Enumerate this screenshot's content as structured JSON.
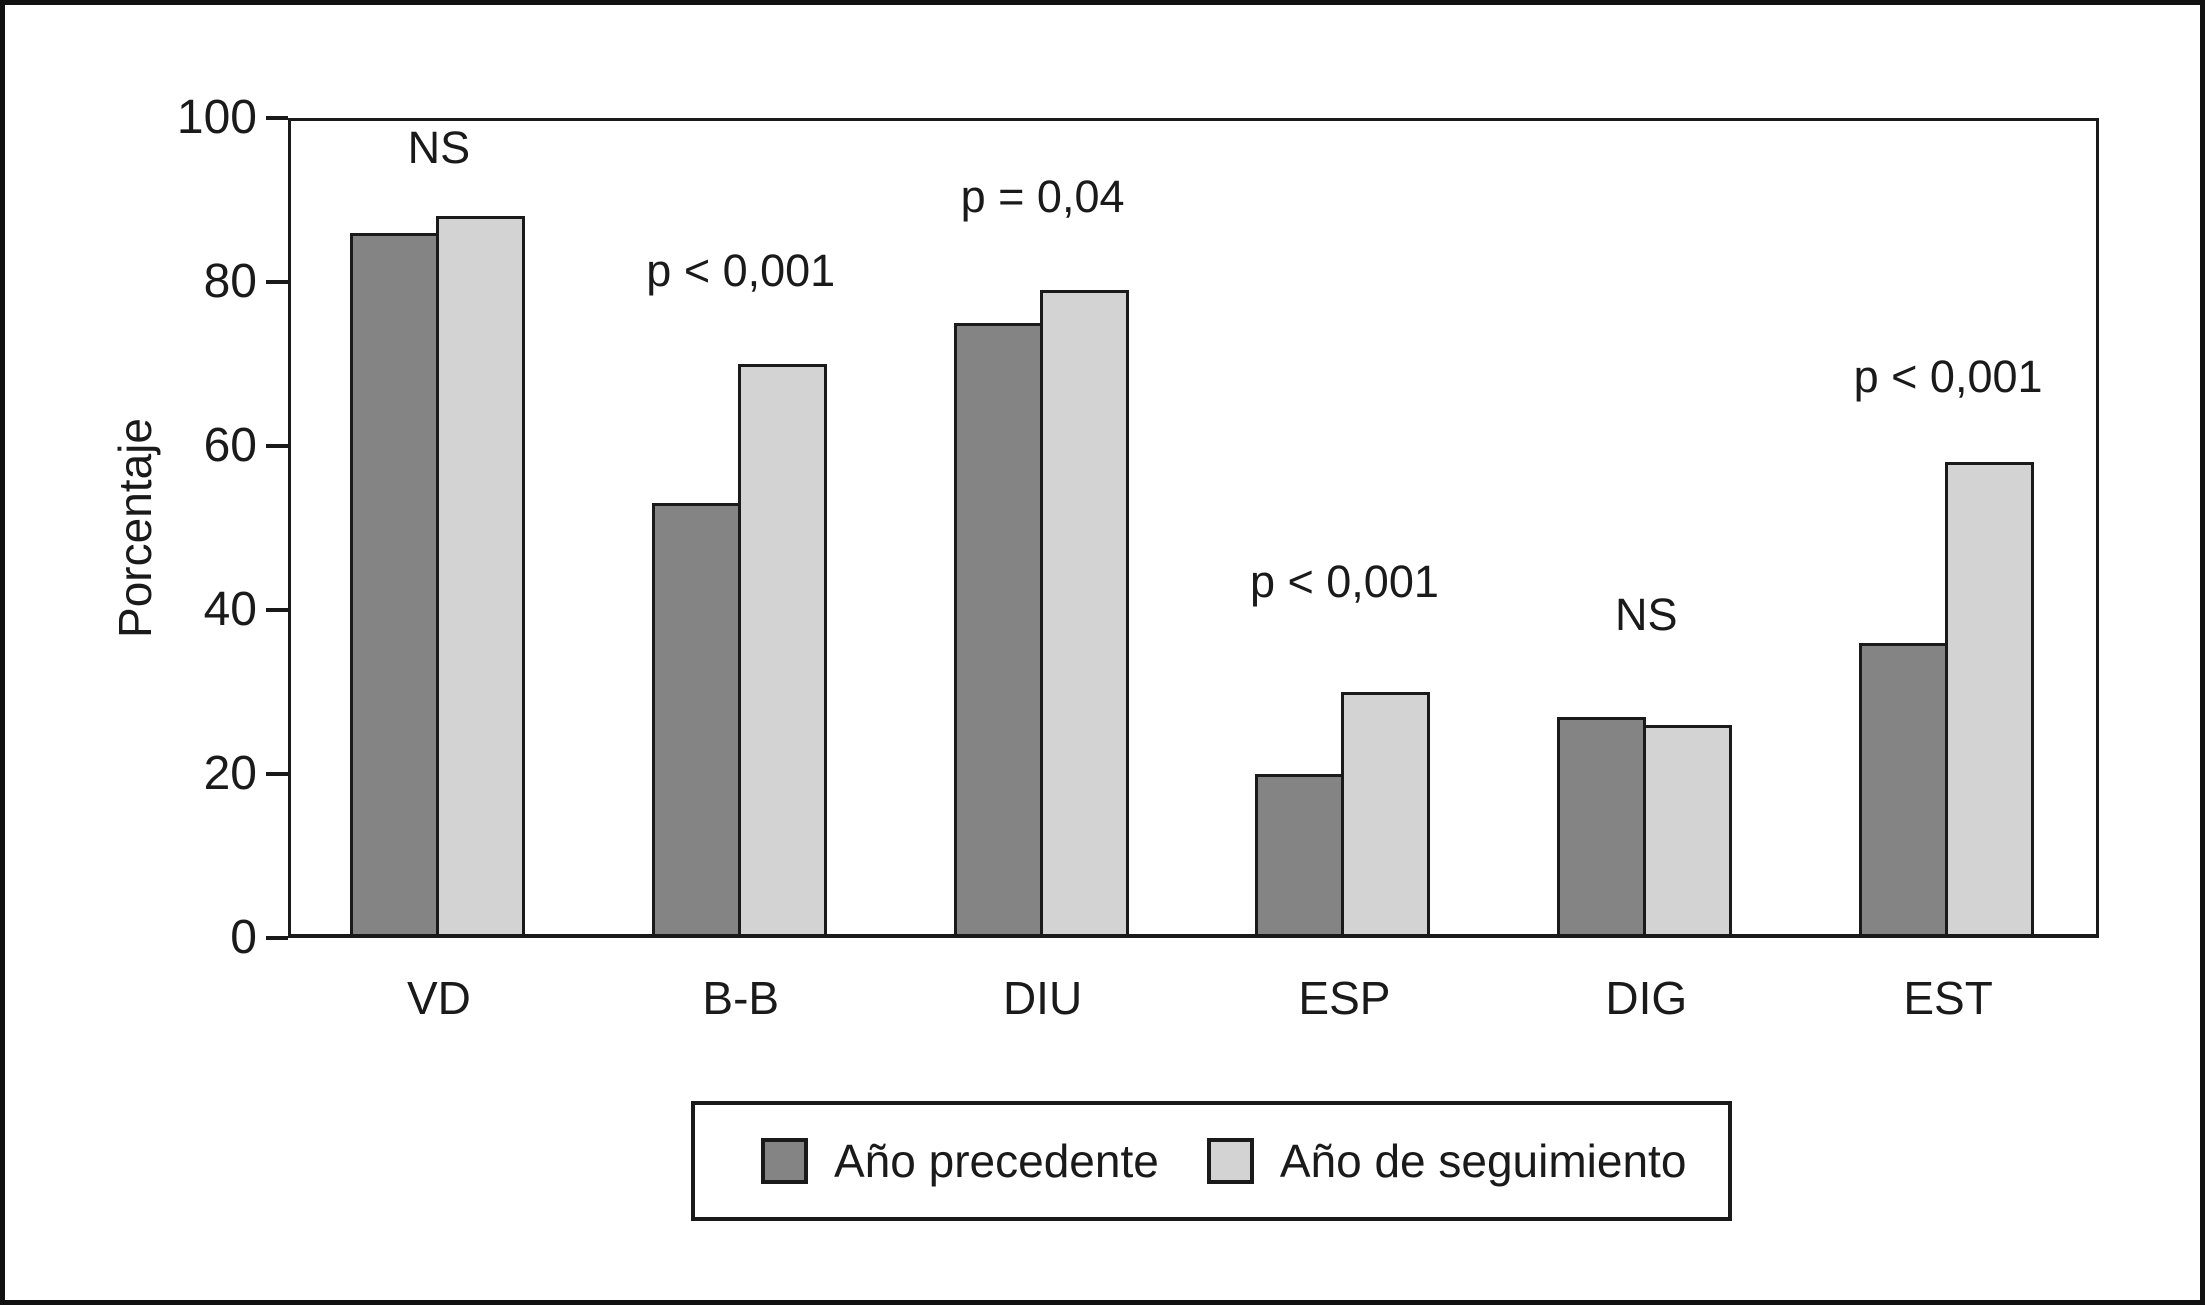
{
  "chart_data": {
    "type": "bar",
    "categories": [
      "VD",
      "B-B",
      "DIU",
      "ESP",
      "DIG",
      "EST"
    ],
    "series": [
      {
        "name": "Año precedente",
        "color": "#848484",
        "values": [
          86,
          53,
          75,
          20,
          27,
          36
        ]
      },
      {
        "name": "Año de seguimiento",
        "color": "#d3d3d3",
        "values": [
          88,
          70,
          79,
          30,
          26,
          58
        ]
      }
    ],
    "annotations": [
      {
        "label": "NS",
        "y": 92
      },
      {
        "label": "p < 0,001",
        "y": 77
      },
      {
        "label": "p = 0,04",
        "y": 86
      },
      {
        "label": "p < 0,001",
        "y": 39
      },
      {
        "label": "NS",
        "y": 35
      },
      {
        "label": "p < 0,001",
        "y": 64
      }
    ],
    "title": "",
    "xlabel": "",
    "ylabel": "Porcentaje",
    "ylim": [
      0,
      100
    ],
    "yticks": [
      0,
      20,
      40,
      60,
      80,
      100
    ],
    "grid": false,
    "legend_position": "bottom",
    "axis_color": "#1a1a1a",
    "bar_border_color": "#1a1a1a"
  }
}
